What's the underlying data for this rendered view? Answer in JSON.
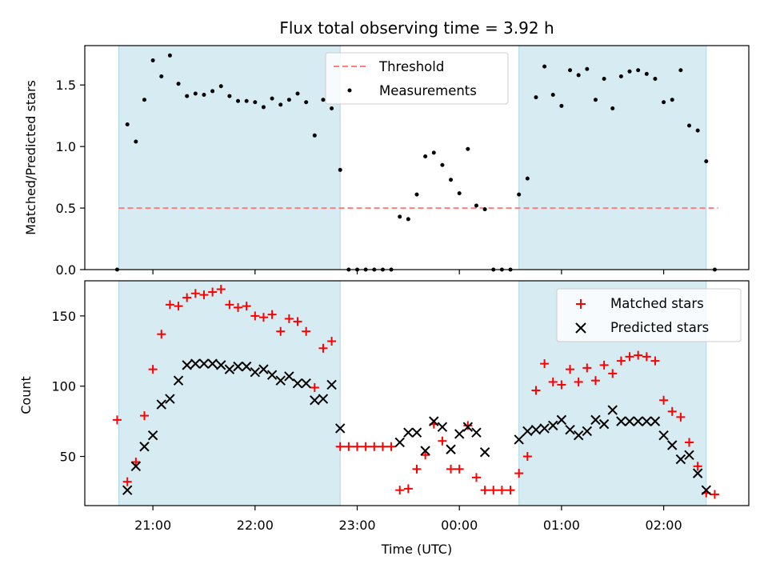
{
  "figure": {
    "title": "Flux total observing time = 3.92 h",
    "xlabel": "Time (UTC)"
  },
  "chart_data": [
    {
      "type": "scatter",
      "name": "top",
      "ylabel": "Matched/Predicted stars",
      "ylim": [
        0,
        1.82
      ],
      "yticks": [
        "0.0",
        "0.5",
        "1.0",
        "1.5"
      ],
      "legend_position": "top-center",
      "threshold": {
        "name": "Threshold",
        "value": 0.5,
        "x_range": [
          "20:40",
          "02:32"
        ],
        "color": "#ff7f7f"
      },
      "series": [
        {
          "name": "Measurements",
          "color": "#000000",
          "points": [
            [
              "20:39",
              0.0
            ],
            [
              "20:45",
              1.18
            ],
            [
              "20:50",
              1.04
            ],
            [
              "20:55",
              1.38
            ],
            [
              "21:00",
              1.7
            ],
            [
              "21:05",
              1.57
            ],
            [
              "21:10",
              1.74
            ],
            [
              "21:15",
              1.51
            ],
            [
              "21:20",
              1.41
            ],
            [
              "21:25",
              1.43
            ],
            [
              "21:30",
              1.42
            ],
            [
              "21:35",
              1.45
            ],
            [
              "21:40",
              1.49
            ],
            [
              "21:45",
              1.41
            ],
            [
              "21:50",
              1.37
            ],
            [
              "21:55",
              1.37
            ],
            [
              "22:00",
              1.36
            ],
            [
              "22:05",
              1.32
            ],
            [
              "22:10",
              1.39
            ],
            [
              "22:15",
              1.34
            ],
            [
              "22:20",
              1.38
            ],
            [
              "22:25",
              1.43
            ],
            [
              "22:30",
              1.36
            ],
            [
              "22:35",
              1.09
            ],
            [
              "22:40",
              1.38
            ],
            [
              "22:45",
              1.31
            ],
            [
              "22:50",
              0.81
            ],
            [
              "22:55",
              0.0
            ],
            [
              "23:00",
              0.0
            ],
            [
              "23:05",
              0.0
            ],
            [
              "23:10",
              0.0
            ],
            [
              "23:15",
              0.0
            ],
            [
              "23:20",
              0.0
            ],
            [
              "23:25",
              0.43
            ],
            [
              "23:30",
              0.41
            ],
            [
              "23:35",
              0.61
            ],
            [
              "23:40",
              0.92
            ],
            [
              "23:45",
              0.95
            ],
            [
              "23:50",
              0.85
            ],
            [
              "23:55",
              0.73
            ],
            [
              "00:00",
              0.62
            ],
            [
              "00:05",
              0.98
            ],
            [
              "00:10",
              0.52
            ],
            [
              "00:15",
              0.49
            ],
            [
              "00:20",
              0.0
            ],
            [
              "00:25",
              0.0
            ],
            [
              "00:30",
              0.0
            ],
            [
              "00:35",
              0.61
            ],
            [
              "00:40",
              0.74
            ],
            [
              "00:45",
              1.4
            ],
            [
              "00:50",
              1.65
            ],
            [
              "00:55",
              1.42
            ],
            [
              "01:00",
              1.33
            ],
            [
              "01:05",
              1.62
            ],
            [
              "01:10",
              1.58
            ],
            [
              "01:15",
              1.63
            ],
            [
              "01:20",
              1.38
            ],
            [
              "01:25",
              1.55
            ],
            [
              "01:30",
              1.31
            ],
            [
              "01:35",
              1.57
            ],
            [
              "01:40",
              1.61
            ],
            [
              "01:45",
              1.62
            ],
            [
              "01:50",
              1.59
            ],
            [
              "01:55",
              1.55
            ],
            [
              "02:00",
              1.36
            ],
            [
              "02:05",
              1.38
            ],
            [
              "02:10",
              1.62
            ],
            [
              "02:15",
              1.17
            ],
            [
              "02:20",
              1.13
            ],
            [
              "02:25",
              0.88
            ],
            [
              "02:30",
              0.0
            ]
          ]
        }
      ],
      "shaded_intervals": [
        [
          "20:40",
          "22:50"
        ],
        [
          "00:35",
          "02:25"
        ]
      ],
      "shade_color": "#add8e6"
    },
    {
      "type": "scatter",
      "name": "bottom",
      "ylabel": "Count",
      "ylim": [
        15,
        175
      ],
      "yticks": [
        "50",
        "100",
        "150"
      ],
      "xlim": [
        "20:20",
        "02:50"
      ],
      "xticks": [
        "21:00",
        "22:00",
        "23:00",
        "00:00",
        "01:00",
        "02:00"
      ],
      "legend_position": "top-right",
      "series": [
        {
          "name": "Matched stars",
          "marker": "plus",
          "color": "#ff0000",
          "points": [
            [
              "20:39",
              76
            ],
            [
              "20:45",
              32
            ],
            [
              "20:50",
              46
            ],
            [
              "20:55",
              79
            ],
            [
              "21:00",
              112
            ],
            [
              "21:05",
              137
            ],
            [
              "21:10",
              158
            ],
            [
              "21:15",
              157
            ],
            [
              "21:20",
              163
            ],
            [
              "21:25",
              166
            ],
            [
              "21:30",
              165
            ],
            [
              "21:35",
              167
            ],
            [
              "21:40",
              169
            ],
            [
              "21:45",
              158
            ],
            [
              "21:50",
              156
            ],
            [
              "21:55",
              157
            ],
            [
              "22:00",
              150
            ],
            [
              "22:05",
              149
            ],
            [
              "22:10",
              151
            ],
            [
              "22:15",
              139
            ],
            [
              "22:20",
              148
            ],
            [
              "22:25",
              146
            ],
            [
              "22:30",
              139
            ],
            [
              "22:35",
              99
            ],
            [
              "22:40",
              127
            ],
            [
              "22:45",
              132
            ],
            [
              "22:50",
              57
            ],
            [
              "22:55",
              57
            ],
            [
              "23:00",
              57
            ],
            [
              "23:05",
              57
            ],
            [
              "23:10",
              57
            ],
            [
              "23:15",
              57
            ],
            [
              "23:20",
              57
            ],
            [
              "23:25",
              26
            ],
            [
              "23:30",
              27
            ],
            [
              "23:35",
              41
            ],
            [
              "23:40",
              51
            ],
            [
              "23:45",
              73
            ],
            [
              "23:50",
              61
            ],
            [
              "23:55",
              41
            ],
            [
              "00:00",
              41
            ],
            [
              "00:05",
              72
            ],
            [
              "00:10",
              35
            ],
            [
              "00:15",
              26
            ],
            [
              "00:20",
              26
            ],
            [
              "00:25",
              26
            ],
            [
              "00:30",
              26
            ],
            [
              "00:35",
              38
            ],
            [
              "00:40",
              50
            ],
            [
              "00:45",
              97
            ],
            [
              "00:50",
              116
            ],
            [
              "00:55",
              103
            ],
            [
              "01:00",
              101
            ],
            [
              "01:05",
              112
            ],
            [
              "01:10",
              103
            ],
            [
              "01:15",
              113
            ],
            [
              "01:20",
              104
            ],
            [
              "01:25",
              115
            ],
            [
              "01:30",
              109
            ],
            [
              "01:35",
              118
            ],
            [
              "01:40",
              121
            ],
            [
              "01:45",
              122
            ],
            [
              "01:50",
              121
            ],
            [
              "01:55",
              118
            ],
            [
              "02:00",
              90
            ],
            [
              "02:05",
              82
            ],
            [
              "02:10",
              78
            ],
            [
              "02:15",
              60
            ],
            [
              "02:20",
              43
            ],
            [
              "02:25",
              24
            ],
            [
              "02:30",
              23
            ]
          ]
        },
        {
          "name": "Predicted stars",
          "marker": "x",
          "color": "#000000",
          "points": [
            [
              "20:45",
              26
            ],
            [
              "20:50",
              43
            ],
            [
              "20:55",
              57
            ],
            [
              "21:00",
              65
            ],
            [
              "21:05",
              87
            ],
            [
              "21:10",
              91
            ],
            [
              "21:15",
              104
            ],
            [
              "21:20",
              115
            ],
            [
              "21:25",
              116
            ],
            [
              "21:30",
              116
            ],
            [
              "21:35",
              116
            ],
            [
              "21:40",
              115
            ],
            [
              "21:45",
              112
            ],
            [
              "21:50",
              114
            ],
            [
              "21:55",
              114
            ],
            [
              "22:00",
              110
            ],
            [
              "22:05",
              112
            ],
            [
              "22:10",
              108
            ],
            [
              "22:15",
              104
            ],
            [
              "22:20",
              107
            ],
            [
              "22:25",
              102
            ],
            [
              "22:30",
              102
            ],
            [
              "22:35",
              90
            ],
            [
              "22:40",
              91
            ],
            [
              "22:45",
              101
            ],
            [
              "22:50",
              70
            ],
            [
              "23:25",
              60
            ],
            [
              "23:30",
              67
            ],
            [
              "23:35",
              67
            ],
            [
              "23:40",
              54
            ],
            [
              "23:45",
              75
            ],
            [
              "23:50",
              71
            ],
            [
              "23:55",
              55
            ],
            [
              "00:00",
              66
            ],
            [
              "00:05",
              71
            ],
            [
              "00:10",
              67
            ],
            [
              "00:15",
              53
            ],
            [
              "00:35",
              62
            ],
            [
              "00:40",
              68
            ],
            [
              "00:45",
              69
            ],
            [
              "00:50",
              70
            ],
            [
              "00:55",
              72
            ],
            [
              "01:00",
              76
            ],
            [
              "01:05",
              69
            ],
            [
              "01:10",
              65
            ],
            [
              "01:15",
              68
            ],
            [
              "01:20",
              76
            ],
            [
              "01:25",
              73
            ],
            [
              "01:30",
              83
            ],
            [
              "01:35",
              75
            ],
            [
              "01:40",
              75
            ],
            [
              "01:45",
              75
            ],
            [
              "01:50",
              75
            ],
            [
              "01:55",
              75
            ],
            [
              "02:00",
              65
            ],
            [
              "02:05",
              58
            ],
            [
              "02:10",
              48
            ],
            [
              "02:15",
              51
            ],
            [
              "02:20",
              38
            ],
            [
              "02:25",
              26
            ]
          ]
        }
      ],
      "shaded_intervals": [
        [
          "20:40",
          "22:50"
        ],
        [
          "00:35",
          "02:25"
        ]
      ],
      "shade_color": "#add8e6"
    }
  ]
}
